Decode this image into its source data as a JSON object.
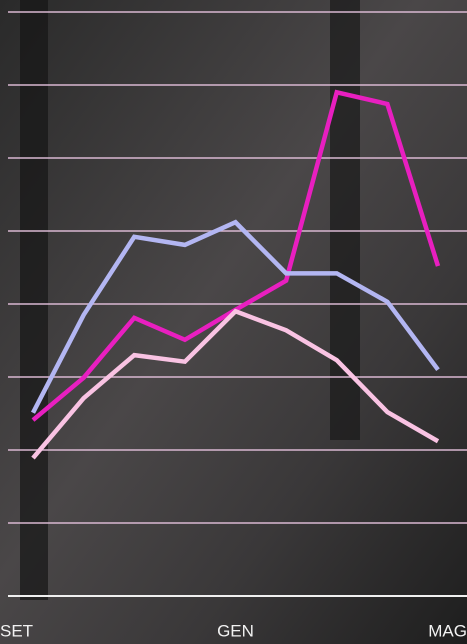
{
  "chart_data": {
    "type": "line",
    "categories": [
      "SET",
      null,
      null,
      null,
      "GEN",
      null,
      null,
      null,
      "MAG"
    ],
    "series": [
      {
        "color": "#e81fc0",
        "values": [
          2.41,
          2.99,
          3.81,
          3.51,
          3.92,
          4.32,
          6.9,
          6.74,
          4.52
        ]
      },
      {
        "color": "#b3b6f2",
        "values": [
          2.51,
          3.85,
          4.92,
          4.81,
          5.12,
          4.42,
          4.42,
          4.03,
          3.1
        ]
      },
      {
        "color": "#f9c3e3",
        "values": [
          1.89,
          2.71,
          3.3,
          3.21,
          3.9,
          3.64,
          3.23,
          2.52,
          2.12
        ]
      }
    ],
    "ylim": [
      0,
      8
    ],
    "yticks": [
      0,
      1,
      2,
      3,
      4,
      5,
      6,
      7,
      8
    ],
    "grid": true
  }
}
